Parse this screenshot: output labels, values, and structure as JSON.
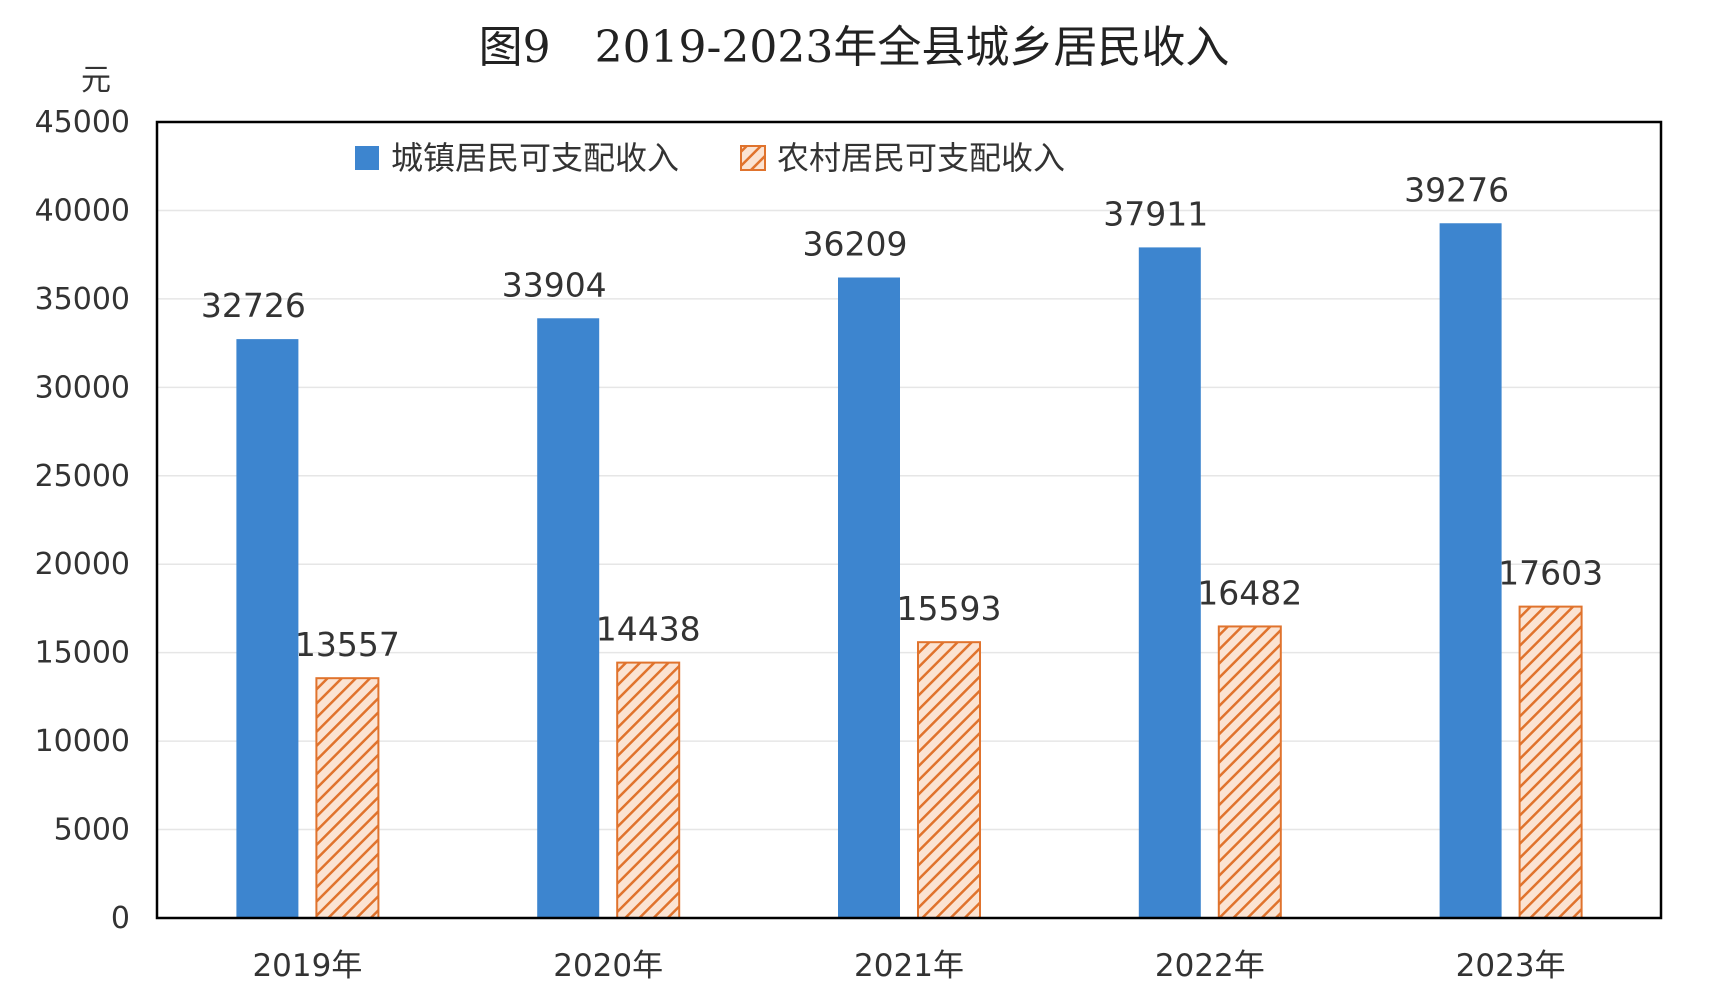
{
  "colors": {
    "urban": "#3d85cf",
    "rural_stroke": "#e0732d",
    "rural_fill": "#fbe3d2",
    "grid": "#e6e6e6",
    "frame": "#000000"
  },
  "chart_data": {
    "type": "bar",
    "title": "图9　2019-2023年全县城乡居民收入",
    "ylabel": "元",
    "xlabel": "",
    "ylim": [
      0,
      45000
    ],
    "yticks": [
      "0",
      "5000",
      "10000",
      "15000",
      "20000",
      "25000",
      "30000",
      "35000",
      "40000",
      "45000"
    ],
    "categories": [
      "2019年",
      "2020年",
      "2021年",
      "2022年",
      "2023年"
    ],
    "grid": true,
    "legend_position": "top-center",
    "series": [
      {
        "name": "城镇居民可支配收入",
        "values": [
          32726,
          33904,
          36209,
          37911,
          39276
        ],
        "labels": [
          "32726",
          "33904",
          "36209",
          "37911",
          "39276"
        ]
      },
      {
        "name": "农村居民可支配收入",
        "values": [
          13557,
          14438,
          15593,
          16482,
          17603
        ],
        "labels": [
          "13557",
          "14438",
          "15593",
          "16482",
          "17603"
        ]
      }
    ]
  }
}
